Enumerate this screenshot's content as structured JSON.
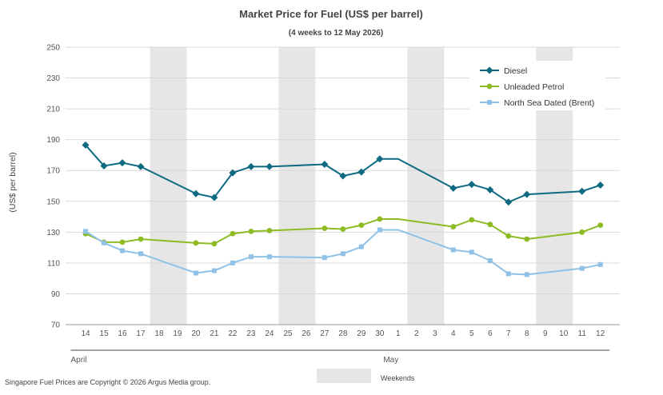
{
  "chart_data": {
    "type": "line",
    "title": "Market Price for Fuel (US$ per barrel)",
    "subtitle": "(4 weeks to 12 May 2026)",
    "ylabel": "(US$ per barrel)",
    "xlabel": "",
    "ylim": [
      70,
      250
    ],
    "yticks": [
      70,
      90,
      110,
      130,
      150,
      170,
      190,
      210,
      230,
      250
    ],
    "grid": true,
    "legend_position": "top-right",
    "categories": [
      "14",
      "15",
      "16",
      "17",
      "18",
      "19",
      "20",
      "21",
      "22",
      "23",
      "24",
      "25",
      "26",
      "27",
      "28",
      "29",
      "30",
      "1",
      "2",
      "3",
      "4",
      "5",
      "6",
      "7",
      "8",
      "9",
      "10",
      "11",
      "12"
    ],
    "months": [
      {
        "label": "April",
        "from": 0,
        "to": 16
      },
      {
        "label": "May",
        "from": 17,
        "to": 28
      }
    ],
    "weekends": [
      [
        4,
        5
      ],
      [
        11,
        12
      ],
      [
        18,
        19
      ],
      [
        25,
        26
      ]
    ],
    "series": [
      {
        "name": "Diesel",
        "color": "#0e6a80",
        "marker": "diamond",
        "values": [
          186.5,
          173.0,
          175.0,
          172.5,
          null,
          null,
          155.0,
          152.5,
          168.5,
          172.5,
          172.5,
          null,
          null,
          174.0,
          166.5,
          169.0,
          177.5,
          177.5,
          null,
          null,
          158.5,
          161.0,
          157.5,
          149.5,
          154.5,
          null,
          null,
          156.5,
          160.5
        ]
      },
      {
        "name": "Unleaded Petrol",
        "color": "#8dbb23",
        "marker": "circle",
        "values": [
          129.0,
          123.5,
          123.5,
          125.5,
          null,
          null,
          123.0,
          122.5,
          129.0,
          130.5,
          131.0,
          null,
          null,
          132.5,
          132.0,
          134.5,
          138.5,
          138.5,
          null,
          null,
          133.5,
          138.0,
          135.0,
          127.5,
          125.5,
          null,
          null,
          130.0,
          134.5
        ]
      },
      {
        "name": "North Sea Dated (Brent)",
        "color": "#8fc2e6",
        "marker": "square",
        "values": [
          130.5,
          123.0,
          118.0,
          116.0,
          null,
          null,
          103.5,
          105.0,
          110.0,
          114.0,
          114.0,
          null,
          null,
          113.5,
          116.0,
          120.5,
          131.5,
          131.5,
          null,
          null,
          118.5,
          117.0,
          111.5,
          103.0,
          102.5,
          null,
          null,
          106.5,
          109.0
        ]
      }
    ],
    "point_markers": [
      [
        true,
        true,
        true,
        true,
        false,
        false,
        true,
        true,
        true,
        true,
        true,
        false,
        false,
        true,
        true,
        true,
        true,
        false,
        false,
        false,
        true,
        true,
        true,
        true,
        true,
        false,
        false,
        true,
        true
      ],
      [
        true,
        true,
        true,
        true,
        false,
        false,
        true,
        true,
        true,
        true,
        true,
        false,
        false,
        true,
        true,
        true,
        true,
        false,
        false,
        false,
        true,
        true,
        true,
        true,
        true,
        false,
        false,
        true,
        true
      ],
      [
        true,
        true,
        true,
        true,
        false,
        false,
        true,
        true,
        true,
        true,
        true,
        false,
        false,
        true,
        true,
        true,
        true,
        false,
        false,
        false,
        true,
        true,
        true,
        true,
        true,
        false,
        false,
        true,
        true
      ]
    ],
    "weekend_legend_label": "Weekends"
  },
  "footer": {
    "copyright": "Singapore Fuel Prices are Copyright © 2026 Argus Media group."
  },
  "colors": {
    "weekend_band": "#e6e6e6",
    "gridline": "#d9d9d9",
    "axis": "#444444"
  }
}
